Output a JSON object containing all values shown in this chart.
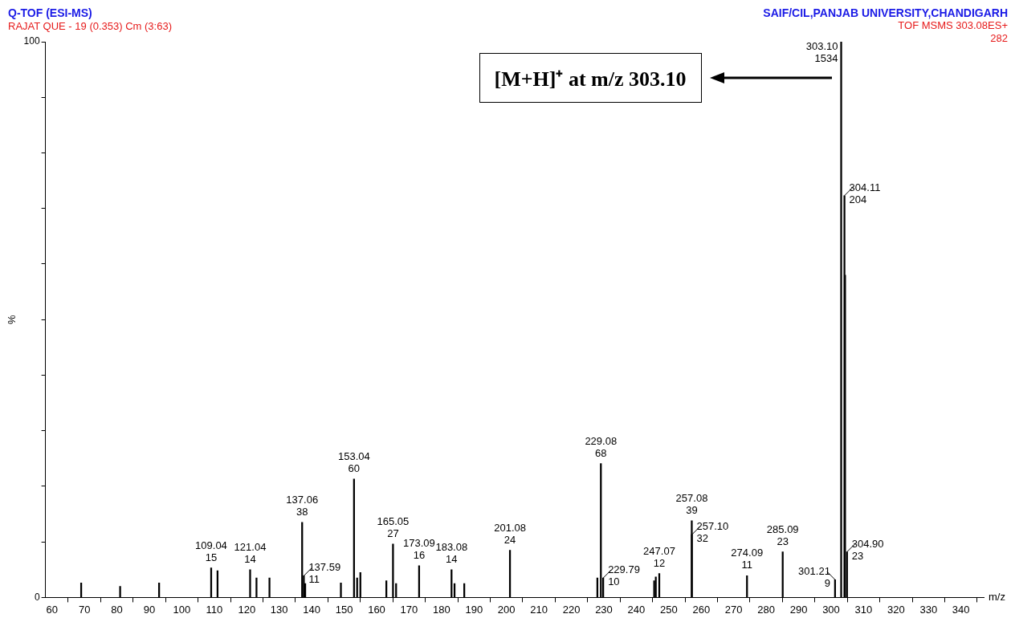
{
  "chart_data": {
    "type": "bar",
    "title": "Q-TOF (ESI-MS)",
    "subtitle": "RAJAT QUE - 19 (0.353) Cm (3:63)",
    "xlabel": "m/z",
    "ylabel": "%",
    "x": [
      69,
      81,
      93,
      109.04,
      111,
      121.04,
      123,
      127,
      137.06,
      137.59,
      138,
      149,
      153.04,
      154,
      155,
      163,
      165.05,
      166,
      173.09,
      183.08,
      184,
      187,
      201.08,
      228,
      229.08,
      229.79,
      245.5,
      246,
      247.07,
      257.08,
      257.1,
      274.09,
      285.09,
      301.21,
      303.1,
      304.11,
      304.3,
      304.9
    ],
    "values": [
      2.6,
      2,
      2.6,
      5.3,
      4.8,
      5.0,
      3.5,
      3.5,
      13.5,
      3.9,
      2.5,
      2.6,
      21.3,
      3.5,
      4.5,
      3,
      9.6,
      2.5,
      5.7,
      5.0,
      2.5,
      2.5,
      8.5,
      3.5,
      24.1,
      3.5,
      3,
      3.7,
      4.3,
      13.8,
      11.3,
      3.9,
      8.2,
      3.2,
      100,
      72.3,
      58,
      8.2
    ],
    "color": "#000000",
    "xlim": [
      58,
      347
    ],
    "xticks": [
      60,
      70,
      80,
      90,
      100,
      110,
      120,
      130,
      140,
      150,
      160,
      170,
      180,
      190,
      200,
      210,
      220,
      230,
      240,
      250,
      260,
      270,
      280,
      290,
      300,
      310,
      320,
      330,
      340
    ],
    "ylim": [
      0,
      100
    ],
    "yticks": [
      0,
      {
        "value": 10,
        "label": null
      },
      {
        "value": 20,
        "label": null
      },
      {
        "value": 30,
        "label": null
      },
      {
        "value": 40,
        "label": null
      },
      {
        "value": 50,
        "label": null
      },
      {
        "value": 60,
        "label": null
      },
      {
        "value": 70,
        "label": null
      },
      {
        "value": 80,
        "label": null
      },
      {
        "value": 90,
        "label": null
      },
      100
    ],
    "annotations": [
      "SAIF/CIL,PANJAB UNIVERSITY,CHANDIGARH",
      "TOF MSMS 303.08ES+",
      "282",
      {
        "text": "109.04\n15",
        "x": 109.04,
        "y": 5.3
      },
      {
        "text": "121.04\n14",
        "x": 121.04,
        "y": 5.0
      },
      {
        "text": "137.06\n38",
        "x": 137.06,
        "y": 13.5
      },
      {
        "text": "137.59\n11",
        "x": 137.59,
        "y": 3.9
      },
      {
        "text": "153.04\n60",
        "x": 153.04,
        "y": 21.3
      },
      {
        "text": "165.05\n27",
        "x": 165.05,
        "y": 9.6
      },
      {
        "text": "173.09\n16",
        "x": 173.09,
        "y": 5.7
      },
      {
        "text": "183.08\n14",
        "x": 183.08,
        "y": 5.0
      },
      {
        "text": "201.08\n24",
        "x": 201.08,
        "y": 8.5
      },
      {
        "text": "229.08\n68",
        "x": 229.08,
        "y": 24.1
      },
      {
        "text": "229.79\n10",
        "x": 229.79,
        "y": 3.5
      },
      {
        "text": "247.07\n12",
        "x": 247.07,
        "y": 4.3
      },
      {
        "text": "257.08\n39",
        "x": 257.08,
        "y": 13.8
      },
      {
        "text": "257.10\n32",
        "x": 257.1,
        "y": 11.3
      },
      {
        "text": "274.09\n11",
        "x": 274.09,
        "y": 3.9
      },
      {
        "text": "285.09\n23",
        "x": 285.09,
        "y": 8.2
      },
      {
        "text": "301.21\n9",
        "x": 301.21,
        "y": 3.2
      },
      {
        "text": "303.10\n1534",
        "x": 303.1,
        "y": 100
      },
      {
        "text": "304.11\n204",
        "x": 304.11,
        "y": 72.3
      },
      {
        "text": "304.90\n23",
        "x": 304.9,
        "y": 8.2
      },
      "[M+H]⁺ at m/z 303.10"
    ]
  }
}
